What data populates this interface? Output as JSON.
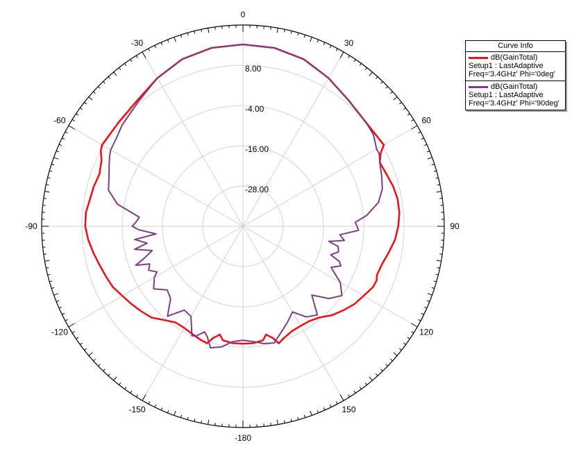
{
  "chart_data": {
    "type": "line",
    "projection": "polar",
    "angle_direction": "clockwise",
    "angle_zero": "top",
    "angle_ticks": [
      0,
      30,
      60,
      90,
      120,
      150,
      -180,
      -150,
      -120,
      -90,
      -60,
      -30
    ],
    "angle_tick_labels": [
      "0",
      "30",
      "60",
      "90",
      "120",
      "150",
      "-180",
      "-150",
      "-120",
      "-90",
      "-60",
      "-30"
    ],
    "radial_range": [
      -40,
      20
    ],
    "radial_ticks": [
      -28,
      -16,
      -4,
      8
    ],
    "radial_tick_labels": [
      "-28.00",
      "-16.00",
      "-4.00",
      "8.00"
    ],
    "grid": true,
    "legend_title": "Curve Info",
    "legend_position": "top-right",
    "series": [
      {
        "name": "dB(GainTotal)",
        "legend_lines": [
          "dB(GainTotal)",
          "Setup1 : LastAdaptive",
          "Freq='3.4GHz' Phi='0deg'"
        ],
        "color": "#e8141b",
        "theta": [
          0,
          10,
          20,
          30,
          40,
          50,
          60,
          62,
          65,
          70,
          75,
          80,
          85,
          90,
          95,
          100,
          105,
          110,
          112,
          115,
          120,
          125,
          130,
          135,
          140,
          145,
          150,
          155,
          160,
          163,
          165,
          168,
          170,
          175,
          180,
          185,
          190,
          192,
          195,
          197,
          200,
          205,
          210,
          215,
          220,
          225,
          230,
          235,
          240,
          245,
          248,
          250,
          255,
          260,
          265,
          270,
          275,
          280,
          285,
          290,
          295,
          298,
          300,
          310,
          320,
          330,
          340,
          350,
          360
        ],
        "r": [
          14.2,
          14.0,
          13.0,
          11.0,
          9.0,
          8.0,
          8.5,
          6.5,
          5.0,
          5.5,
          6.3,
          6.8,
          6.8,
          6.3,
          5.5,
          4.2,
          3.0,
          2.5,
          3.0,
          2.8,
          1.5,
          0.5,
          -1.0,
          -2.5,
          -4.5,
          -5.5,
          -5.7,
          -5.5,
          -4.5,
          -3.5,
          -5.5,
          -7.0,
          -5.5,
          -5.0,
          -5.0,
          -5.0,
          -5.5,
          -7.0,
          -5.5,
          -3.5,
          -3.8,
          -4.5,
          -5.0,
          -5.0,
          -3.5,
          -1.5,
          -0.5,
          0.5,
          1.5,
          2.8,
          3.2,
          3.5,
          4.3,
          5.3,
          6.3,
          7.0,
          7.0,
          6.3,
          6.0,
          5.5,
          6.5,
          8.0,
          8.5,
          8.3,
          9.0,
          11.0,
          13.0,
          14.0,
          14.2
        ]
      },
      {
        "name": "dB(GainTotal)",
        "legend_lines": [
          "dB(GainTotal)",
          "Setup1 : LastAdaptive",
          "Freq='3.4GHz' Phi='90deg'"
        ],
        "color": "#7b3f7f",
        "theta": [
          0,
          10,
          20,
          30,
          40,
          50,
          55,
          60,
          62,
          65,
          70,
          75,
          80,
          85,
          88,
          92,
          95,
          98,
          100,
          102,
          105,
          108,
          110,
          112,
          115,
          118,
          120,
          125,
          130,
          135,
          140,
          145,
          150,
          155,
          160,
          165,
          170,
          175,
          180,
          185,
          190,
          195,
          198,
          200,
          203,
          205,
          210,
          215,
          220,
          225,
          230,
          235,
          240,
          242,
          245,
          248,
          250,
          252,
          255,
          258,
          260,
          263,
          265,
          268,
          270,
          272,
          275,
          280,
          285,
          290,
          295,
          298,
          300,
          305,
          310,
          320,
          330,
          340,
          350,
          360
        ],
        "r": [
          14.2,
          14.0,
          13.0,
          11.0,
          9.0,
          8.0,
          7.5,
          6.0,
          6.0,
          5.0,
          4.0,
          3.0,
          1.0,
          -3.0,
          -6.5,
          -5.5,
          -11.0,
          -9.5,
          -14.0,
          -11.0,
          -10.5,
          -12.5,
          -9.5,
          -8.5,
          -11.0,
          -8.5,
          -6.5,
          -4.0,
          -6.5,
          -11.0,
          -5.5,
          -7.0,
          -10.5,
          -8.5,
          -6.5,
          -4.0,
          -4.5,
          -5.5,
          -6.0,
          -5.5,
          -3.5,
          -2.5,
          -5.5,
          -6.5,
          -4.5,
          -4.0,
          -9.0,
          -9.5,
          -5.0,
          -9.5,
          -10.5,
          -7.5,
          -9.5,
          -11.0,
          -9.0,
          -10.0,
          -6.0,
          -9.0,
          -12.0,
          -7.0,
          -11.0,
          -7.5,
          -14.0,
          -9.0,
          -7.0,
          -8.0,
          -9.0,
          -2.0,
          1.5,
          2.5,
          4.0,
          5.0,
          5.5,
          6.0,
          7.0,
          8.5,
          11.0,
          13.0,
          14.0,
          14.2
        ]
      }
    ]
  }
}
